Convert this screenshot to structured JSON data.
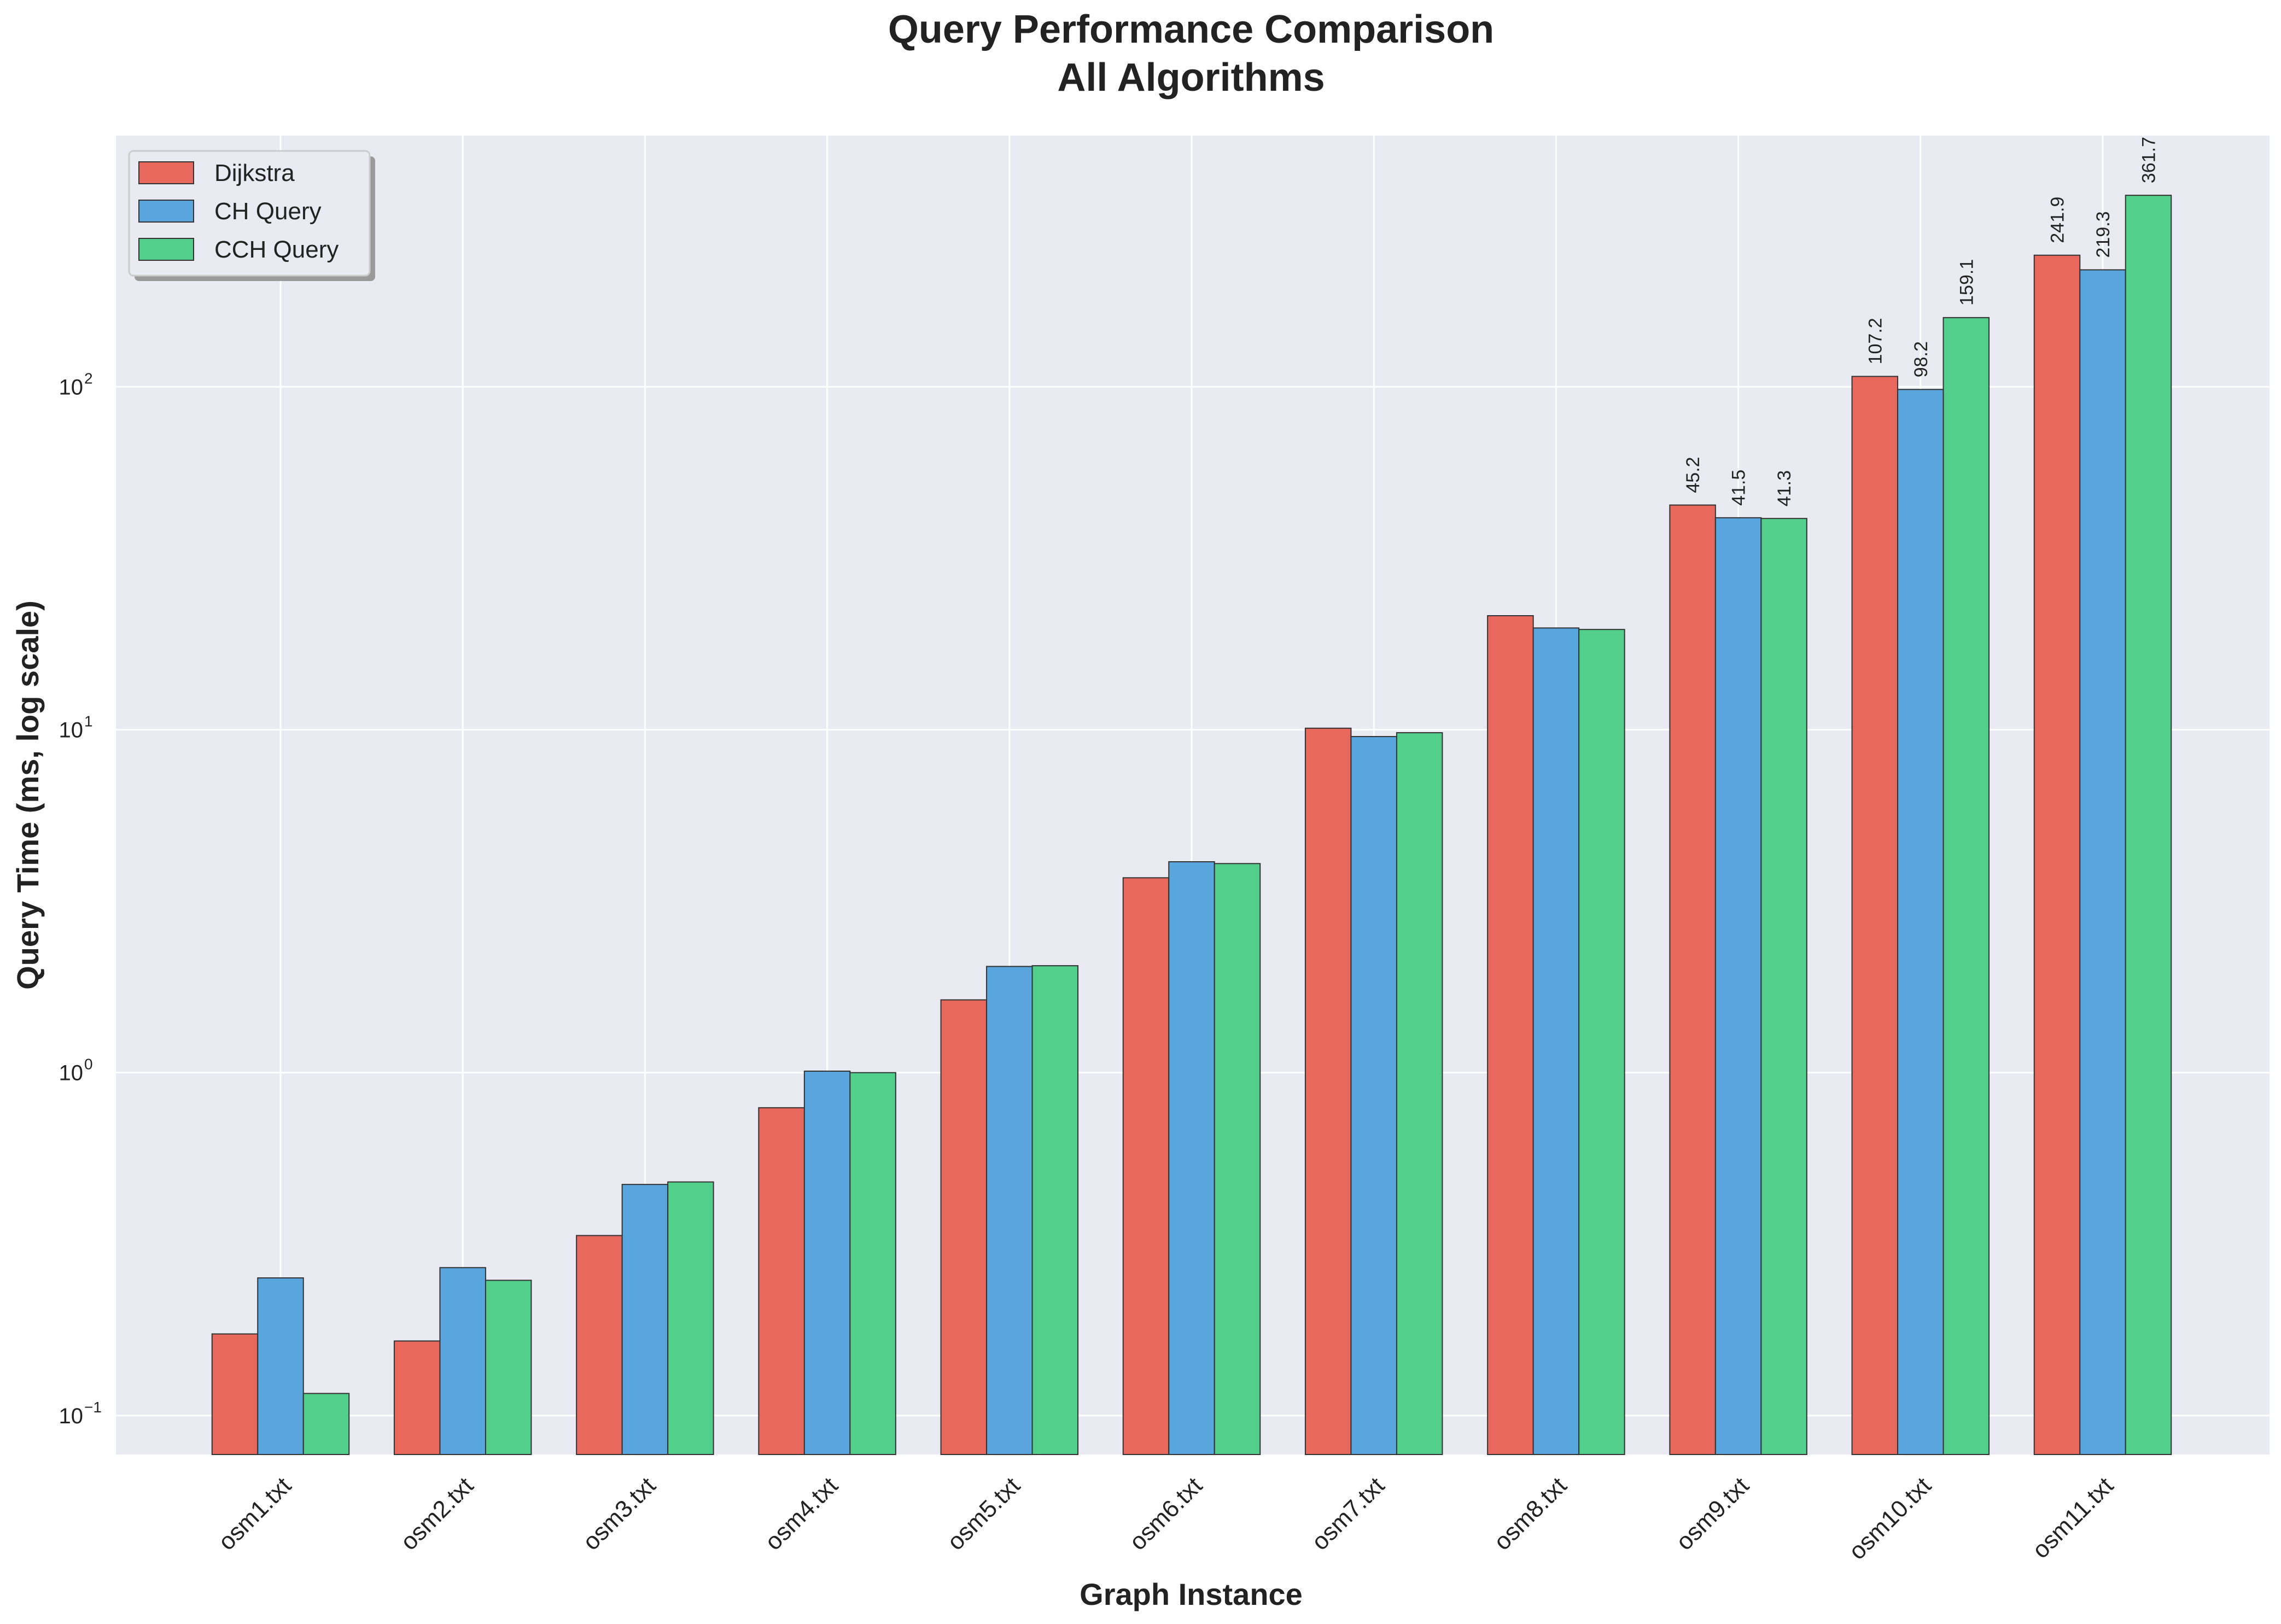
{
  "chart_data": {
    "type": "bar",
    "title": "Query Performance Comparison",
    "subtitle": "All Algorithms",
    "xlabel": "Graph Instance",
    "ylabel": "Query Time (ms, log scale)",
    "yscale": "log",
    "ylim": [
      0.077,
      540
    ],
    "ytick_labels": [
      {
        "base": "10",
        "exp": "−1",
        "value": 0.1
      },
      {
        "base": "10",
        "exp": "0",
        "value": 1
      },
      {
        "base": "10",
        "exp": "1",
        "value": 10
      },
      {
        "base": "10",
        "exp": "2",
        "value": 100
      }
    ],
    "grid": true,
    "legend_position": "top-left",
    "categories": [
      "osm1.txt",
      "osm2.txt",
      "osm3.txt",
      "osm4.txt",
      "osm5.txt",
      "osm6.txt",
      "osm7.txt",
      "osm8.txt",
      "osm9.txt",
      "osm10.txt",
      "osm11.txt"
    ],
    "series": [
      {
        "name": "Dijkstra",
        "color": "#e8685e",
        "values": [
          0.173,
          0.165,
          0.335,
          0.79,
          1.63,
          3.7,
          10.1,
          21.5,
          45.2,
          107.2,
          241.9
        ]
      },
      {
        "name": "CH Query",
        "color": "#58a6dd",
        "values": [
          0.252,
          0.27,
          0.472,
          1.01,
          2.04,
          4.12,
          9.55,
          19.8,
          41.5,
          98.2,
          219.3
        ]
      },
      {
        "name": "CCH Query",
        "color": "#52d08b",
        "values": [
          0.116,
          0.248,
          0.48,
          1.0,
          2.05,
          4.07,
          9.8,
          19.6,
          41.3,
          159.1,
          361.7
        ]
      }
    ],
    "data_labels": [
      {
        "category_index": 8,
        "series_index": 0,
        "text": "45.2"
      },
      {
        "category_index": 8,
        "series_index": 1,
        "text": "41.5"
      },
      {
        "category_index": 8,
        "series_index": 2,
        "text": "41.3"
      },
      {
        "category_index": 9,
        "series_index": 0,
        "text": "107.2"
      },
      {
        "category_index": 9,
        "series_index": 1,
        "text": "98.2"
      },
      {
        "category_index": 9,
        "series_index": 2,
        "text": "159.1"
      },
      {
        "category_index": 10,
        "series_index": 0,
        "text": "241.9"
      },
      {
        "category_index": 10,
        "series_index": 1,
        "text": "219.3"
      },
      {
        "category_index": 10,
        "series_index": 2,
        "text": "361.7"
      }
    ],
    "colors": {
      "plot_background": "#eaeaf2",
      "grid": "#ffffff",
      "bar_edge": "#333333",
      "text": "#222222"
    }
  }
}
